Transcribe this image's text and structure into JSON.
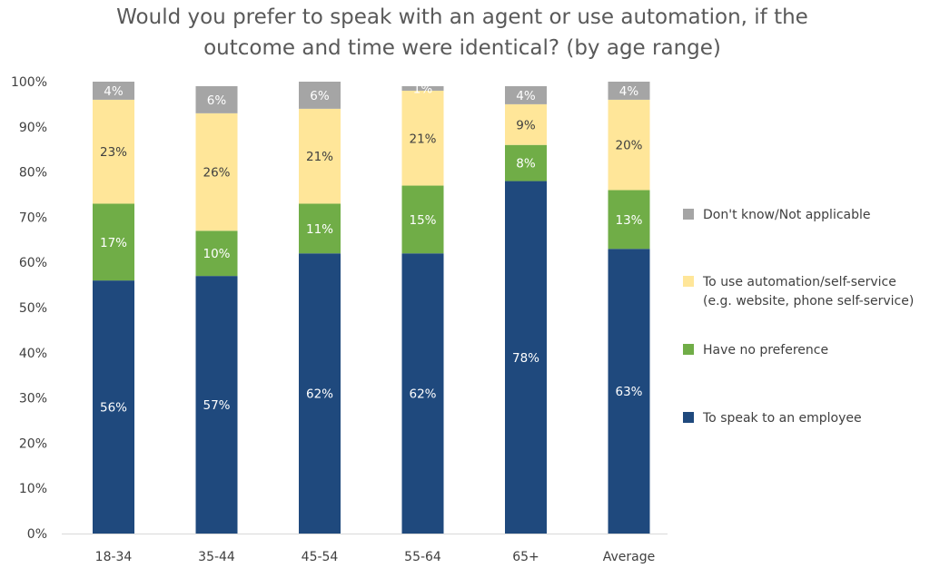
{
  "chart_data": {
    "type": "bar",
    "stacked": true,
    "title": "Would you prefer to speak with an agent or use automation, if the outcome and time were identical? (by age range)",
    "title_lines": [
      "Would you prefer to speak with an agent or use automation, if the",
      "outcome and time were identical? (by age range)"
    ],
    "categories": [
      "18-34",
      "35-44",
      "45-54",
      "55-64",
      "65+",
      "Average"
    ],
    "ylim": [
      0,
      100
    ],
    "yticks": [
      0,
      10,
      20,
      30,
      40,
      50,
      60,
      70,
      80,
      90,
      100
    ],
    "ytick_format": "{v}%",
    "grid": false,
    "legend_position": "right",
    "series": [
      {
        "name": "To speak to an employee",
        "color": "#1F497D",
        "label_color": "#ffffff",
        "values": [
          56,
          57,
          62,
          62,
          78,
          63
        ],
        "labels": [
          "56%",
          "57%",
          "62%",
          "62%",
          "78%",
          "63%"
        ]
      },
      {
        "name": "Have no preference",
        "color": "#70AD47",
        "label_color": "#ffffff",
        "values": [
          17,
          10,
          11,
          15,
          8,
          13
        ],
        "labels": [
          "17%",
          "10%",
          "11%",
          "15%",
          "8%",
          "13%"
        ]
      },
      {
        "name": "To use automation/self-service (e.g. website, phone self-service)",
        "legend_lines": [
          "To use automation/self-service",
          "(e.g. website, phone self-service)"
        ],
        "color": "#FFE699",
        "label_color": "#404040",
        "values": [
          23,
          26,
          21,
          21,
          9,
          20
        ],
        "labels": [
          "23%",
          "26%",
          "21%",
          "21%",
          "9%",
          "20%"
        ]
      },
      {
        "name": "Don't know/Not applicable",
        "color": "#A5A5A5",
        "label_color": "#ffffff",
        "values": [
          4,
          6,
          6,
          1,
          4,
          4
        ],
        "labels": [
          "4%",
          "6%",
          "6%",
          "1%",
          "4%",
          "4%"
        ]
      }
    ],
    "legend_order": [
      3,
      2,
      1,
      0
    ]
  }
}
